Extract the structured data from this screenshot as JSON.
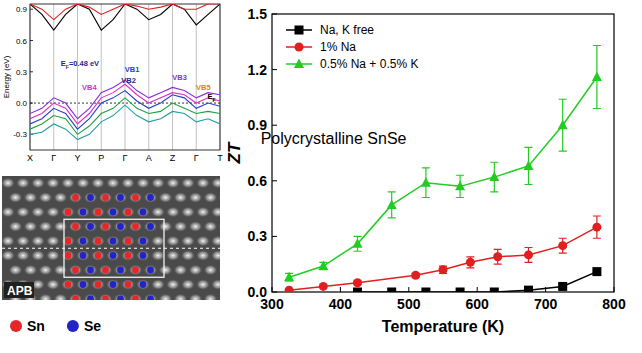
{
  "chart_data": [
    {
      "type": "line",
      "y_label": "Energy (eV)",
      "categories": [
        "X",
        null,
        "Γ",
        null,
        "Y",
        null,
        "P",
        null,
        "Γ",
        null,
        "A",
        null,
        "Z",
        null,
        "Γ",
        null,
        "T"
      ],
      "ylim": [
        -0.45,
        0.95
      ],
      "yticks": [
        {
          "value": -0.3,
          "label": "-0.3"
        },
        {
          "value": 0,
          "label": "0.0"
        },
        {
          "value": 0.3,
          "label": "0.3"
        },
        {
          "value": 0.6,
          "label": "0.6"
        },
        {
          "value": 0.9,
          "label": "0.9"
        }
      ],
      "grid": false,
      "series": [
        {
          "color": "#000000",
          "values": [
            0.95,
            0.85,
            0.7,
            0.85,
            0.95,
            0.9,
            0.7,
            0.8,
            0.95,
            0.9,
            0.8,
            0.85,
            0.95,
            0.9,
            0.75,
            0.85,
            0.95
          ]
        },
        {
          "color": "#e02020",
          "values": [
            0.95,
            0.9,
            0.8,
            0.9,
            0.95,
            0.92,
            0.85,
            0.9,
            0.95,
            0.93,
            0.9,
            0.92,
            0.95,
            0.9,
            0.9,
            0.95,
            0.95
          ]
        },
        {
          "color": "#8a2be2",
          "values": [
            -0.1,
            -0.05,
            0.05,
            0.0,
            -0.15,
            -0.05,
            0.1,
            0.15,
            0.22,
            0.12,
            0.05,
            0.1,
            0.15,
            0.12,
            0.05,
            0.1,
            0.08
          ]
        },
        {
          "color": "#e030c0",
          "values": [
            -0.15,
            -0.1,
            0.0,
            -0.05,
            -0.2,
            -0.1,
            0.05,
            0.1,
            0.18,
            0.08,
            0.0,
            0.05,
            0.1,
            0.08,
            0.0,
            0.05,
            0.02
          ]
        },
        {
          "color": "#2040d0",
          "values": [
            -0.2,
            -0.15,
            -0.05,
            -0.1,
            -0.25,
            -0.15,
            0.0,
            0.05,
            0.12,
            0.02,
            -0.05,
            0.0,
            0.08,
            0.05,
            -0.05,
            0.0,
            -0.03
          ]
        },
        {
          "color": "#20a040",
          "values": [
            -0.25,
            -0.2,
            -0.12,
            -0.15,
            -0.3,
            -0.22,
            -0.1,
            -0.05,
            0.05,
            -0.05,
            -0.1,
            -0.08,
            0.0,
            -0.05,
            -0.1,
            -0.08,
            -0.1
          ]
        },
        {
          "color": "#20a0a0",
          "values": [
            -0.3,
            -0.28,
            -0.2,
            -0.25,
            -0.35,
            -0.3,
            -0.18,
            -0.12,
            -0.02,
            -0.12,
            -0.18,
            -0.15,
            -0.08,
            -0.1,
            -0.18,
            -0.15,
            -0.2
          ]
        }
      ],
      "annotations": [
        {
          "text": "EF=0.48 eV",
          "x": 4.2,
          "y": 0.36,
          "color": "#1a2a8a"
        },
        {
          "text": "VB1",
          "x": 8.6,
          "y": 0.3,
          "color": "#2040d0"
        },
        {
          "text": "VB2",
          "x": 8.3,
          "y": 0.19,
          "color": "#1a2a8a"
        },
        {
          "text": "VB3",
          "x": 12.6,
          "y": 0.22,
          "color": "#8a2be2"
        },
        {
          "text": "VB4",
          "x": 5.0,
          "y": 0.13,
          "color": "#e030c0"
        },
        {
          "text": "VB5",
          "x": 14.6,
          "y": 0.13,
          "color": "#e08020"
        },
        {
          "text": "EF",
          "x": 15.3,
          "y": 0.04,
          "color": "#000000"
        }
      ]
    },
    {
      "type": "line",
      "x_label": "Temperature (K)",
      "y_label": "ZT",
      "xlim": [
        300,
        800
      ],
      "xticks": [
        300,
        400,
        500,
        600,
        700,
        800
      ],
      "ylim": [
        0,
        1.5
      ],
      "yticks": [
        {
          "value": 0,
          "label": "0.0"
        },
        {
          "value": 0.3,
          "label": "0.3"
        },
        {
          "value": 0.6,
          "label": "0.6"
        },
        {
          "value": 0.9,
          "label": "0.9"
        },
        {
          "value": 1.2,
          "label": "1.2"
        },
        {
          "value": 1.5,
          "label": "1.5"
        }
      ],
      "grid": false,
      "legend": "upper left",
      "series": [
        {
          "name": "Na, K free",
          "color": "#000000",
          "marker": "square",
          "x": [
            425,
            475,
            525,
            575,
            625,
            675,
            725,
            775
          ],
          "values": [
            0.0,
            0.0,
            0.0,
            0.0,
            0.0,
            0.01,
            0.03,
            0.11
          ],
          "errors": [
            0.0,
            0.0,
            0.0,
            0.0,
            0.0,
            0.0,
            0.01,
            0.01
          ]
        },
        {
          "name": "1% Na",
          "color": "#e02020",
          "marker": "circle",
          "x": [
            325,
            375,
            425,
            510,
            550,
            590,
            630,
            675,
            725,
            775
          ],
          "values": [
            0.01,
            0.03,
            0.05,
            0.09,
            0.12,
            0.16,
            0.19,
            0.2,
            0.25,
            0.35
          ],
          "errors": [
            0.0,
            0.0,
            0.01,
            0.01,
            0.02,
            0.03,
            0.04,
            0.04,
            0.04,
            0.06
          ]
        },
        {
          "name": "0.5% Na + 0.5% K",
          "color": "#22cc22",
          "marker": "triangle",
          "x": [
            325,
            375,
            425,
            475,
            525,
            575,
            625,
            675,
            725,
            775
          ],
          "values": [
            0.08,
            0.14,
            0.26,
            0.47,
            0.59,
            0.57,
            0.62,
            0.68,
            0.9,
            1.16
          ],
          "errors": [
            0.02,
            0.02,
            0.04,
            0.07,
            0.08,
            0.06,
            0.08,
            0.1,
            0.14,
            0.17
          ]
        }
      ],
      "annotations": [
        {
          "text": "Polycrystalline SnSe",
          "x": 390,
          "y": 0.8
        }
      ]
    }
  ],
  "stem_image": {
    "label": "APB",
    "legend": [
      {
        "name": "Sn",
        "color": "#e8262a"
      },
      {
        "name": "Se",
        "color": "#2323c8"
      }
    ]
  }
}
